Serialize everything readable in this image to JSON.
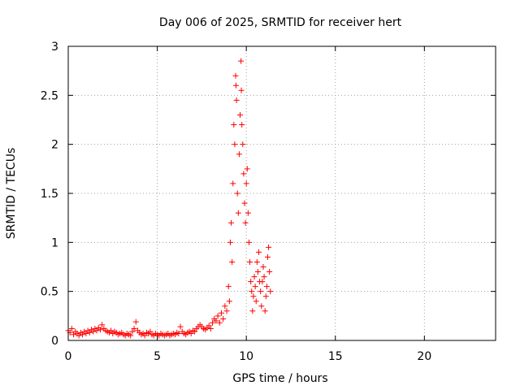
{
  "chart_data": {
    "type": "scatter",
    "title": "Day 006 of 2025, SRMTID for receiver hert",
    "xlabel": "GPS time / hours",
    "ylabel": "SRMTID / TECUs",
    "xlim": [
      0,
      24
    ],
    "ylim": [
      0,
      3
    ],
    "xticks": [
      0,
      5,
      10,
      15,
      20
    ],
    "yticks": [
      0,
      0.5,
      1,
      1.5,
      2,
      2.5,
      3
    ],
    "xtick_labels": [
      "0",
      "5",
      "10",
      "15",
      "20"
    ],
    "ytick_labels": [
      "0",
      "0.5",
      "1",
      "1.5",
      "2",
      "2.5",
      "3"
    ],
    "grid": true,
    "marker": "+",
    "color": "#ff0000",
    "series": [
      {
        "name": "SRMTID",
        "points": [
          [
            0.0,
            0.1
          ],
          [
            0.1,
            0.08
          ],
          [
            0.2,
            0.12
          ],
          [
            0.3,
            0.06
          ],
          [
            0.4,
            0.09
          ],
          [
            0.5,
            0.07
          ],
          [
            0.6,
            0.05
          ],
          [
            0.7,
            0.08
          ],
          [
            0.8,
            0.06
          ],
          [
            0.9,
            0.09
          ],
          [
            1.0,
            0.07
          ],
          [
            1.1,
            0.1
          ],
          [
            1.2,
            0.08
          ],
          [
            1.3,
            0.11
          ],
          [
            1.4,
            0.09
          ],
          [
            1.5,
            0.12
          ],
          [
            1.6,
            0.1
          ],
          [
            1.7,
            0.13
          ],
          [
            1.8,
            0.11
          ],
          [
            1.9,
            0.16
          ],
          [
            2.0,
            0.12
          ],
          [
            2.1,
            0.1
          ],
          [
            2.2,
            0.09
          ],
          [
            2.3,
            0.08
          ],
          [
            2.4,
            0.1
          ],
          [
            2.5,
            0.07
          ],
          [
            2.6,
            0.09
          ],
          [
            2.7,
            0.08
          ],
          [
            2.8,
            0.06
          ],
          [
            2.9,
            0.07
          ],
          [
            3.0,
            0.08
          ],
          [
            3.1,
            0.06
          ],
          [
            3.2,
            0.05
          ],
          [
            3.3,
            0.07
          ],
          [
            3.4,
            0.06
          ],
          [
            3.5,
            0.05
          ],
          [
            3.6,
            0.09
          ],
          [
            3.7,
            0.12
          ],
          [
            3.8,
            0.19
          ],
          [
            3.9,
            0.1
          ],
          [
            4.0,
            0.08
          ],
          [
            4.1,
            0.06
          ],
          [
            4.2,
            0.07
          ],
          [
            4.3,
            0.05
          ],
          [
            4.4,
            0.08
          ],
          [
            4.5,
            0.07
          ],
          [
            4.6,
            0.09
          ],
          [
            4.7,
            0.06
          ],
          [
            4.8,
            0.05
          ],
          [
            4.9,
            0.07
          ],
          [
            5.0,
            0.06
          ],
          [
            5.1,
            0.05
          ],
          [
            5.2,
            0.07
          ],
          [
            5.3,
            0.06
          ],
          [
            5.4,
            0.05
          ],
          [
            5.5,
            0.06
          ],
          [
            5.6,
            0.07
          ],
          [
            5.7,
            0.05
          ],
          [
            5.8,
            0.06
          ],
          [
            5.9,
            0.07
          ],
          [
            6.0,
            0.06
          ],
          [
            6.1,
            0.08
          ],
          [
            6.2,
            0.07
          ],
          [
            6.3,
            0.14
          ],
          [
            6.4,
            0.09
          ],
          [
            6.5,
            0.07
          ],
          [
            6.6,
            0.06
          ],
          [
            6.7,
            0.08
          ],
          [
            6.8,
            0.09
          ],
          [
            6.9,
            0.07
          ],
          [
            7.0,
            0.1
          ],
          [
            7.1,
            0.09
          ],
          [
            7.2,
            0.12
          ],
          [
            7.3,
            0.14
          ],
          [
            7.4,
            0.16
          ],
          [
            7.5,
            0.14
          ],
          [
            7.6,
            0.12
          ],
          [
            7.7,
            0.11
          ],
          [
            7.8,
            0.13
          ],
          [
            7.9,
            0.15
          ],
          [
            8.0,
            0.12
          ],
          [
            8.1,
            0.18
          ],
          [
            8.2,
            0.22
          ],
          [
            8.3,
            0.2
          ],
          [
            8.4,
            0.25
          ],
          [
            8.5,
            0.18
          ],
          [
            8.6,
            0.28
          ],
          [
            8.7,
            0.22
          ],
          [
            8.8,
            0.35
          ],
          [
            8.9,
            0.3
          ],
          [
            9.0,
            0.55
          ],
          [
            9.05,
            0.4
          ],
          [
            9.1,
            1.0
          ],
          [
            9.15,
            1.2
          ],
          [
            9.2,
            0.8
          ],
          [
            9.25,
            1.6
          ],
          [
            9.3,
            2.2
          ],
          [
            9.35,
            2.0
          ],
          [
            9.4,
            2.7
          ],
          [
            9.42,
            2.6
          ],
          [
            9.45,
            2.45
          ],
          [
            9.5,
            1.5
          ],
          [
            9.55,
            1.3
          ],
          [
            9.6,
            1.9
          ],
          [
            9.65,
            2.3
          ],
          [
            9.7,
            2.85
          ],
          [
            9.72,
            2.55
          ],
          [
            9.75,
            2.2
          ],
          [
            9.8,
            2.0
          ],
          [
            9.85,
            1.7
          ],
          [
            9.9,
            1.4
          ],
          [
            9.95,
            1.2
          ],
          [
            10.0,
            1.6
          ],
          [
            10.05,
            1.75
          ],
          [
            10.1,
            1.3
          ],
          [
            10.15,
            1.0
          ],
          [
            10.2,
            0.8
          ],
          [
            10.25,
            0.6
          ],
          [
            10.3,
            0.5
          ],
          [
            10.35,
            0.3
          ],
          [
            10.4,
            0.45
          ],
          [
            10.45,
            0.65
          ],
          [
            10.5,
            0.55
          ],
          [
            10.55,
            0.4
          ],
          [
            10.6,
            0.8
          ],
          [
            10.65,
            0.7
          ],
          [
            10.7,
            0.9
          ],
          [
            10.75,
            0.6
          ],
          [
            10.8,
            0.5
          ],
          [
            10.85,
            0.35
          ],
          [
            10.9,
            0.6
          ],
          [
            10.95,
            0.75
          ],
          [
            11.0,
            0.65
          ],
          [
            11.05,
            0.3
          ],
          [
            11.1,
            0.45
          ],
          [
            11.15,
            0.55
          ],
          [
            11.2,
            0.85
          ],
          [
            11.25,
            0.95
          ],
          [
            11.3,
            0.7
          ],
          [
            11.35,
            0.5
          ]
        ]
      }
    ]
  }
}
